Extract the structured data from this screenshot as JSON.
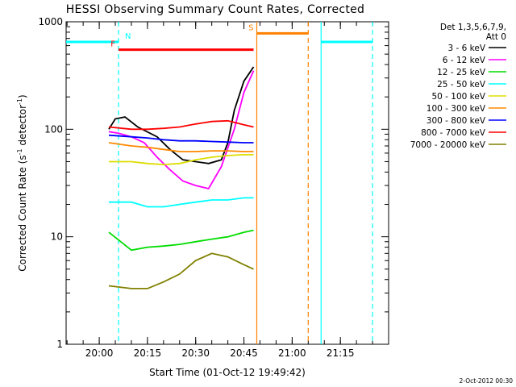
{
  "chart_data": {
    "type": "line",
    "title": "HESSI Observing Summary Count Rates, Corrected",
    "xlabel": "Start Time (01-Oct-12 19:49:42)",
    "ylabel": "Corrected Count Rate (s⁻¹ detector⁻¹)",
    "ylabel_parts": [
      "Corrected Count Rate (s",
      "-1",
      " detector",
      "-1",
      ")"
    ],
    "yscale": "log",
    "xlim": [
      "19:49:42",
      "21:30:00"
    ],
    "ylim": [
      1,
      1000
    ],
    "x_ticks": [
      "20:00",
      "20:15",
      "20:30",
      "20:45",
      "21:00",
      "21:15"
    ],
    "y_ticks": [
      "1",
      "10",
      "100",
      "1000"
    ],
    "grid": false,
    "legend": {
      "placement": "right",
      "header": [
        "Det 1,3,5,6,7,9,",
        "Att 0"
      ]
    },
    "series": [
      {
        "name": "3 - 6 keV",
        "color": "#000000",
        "x": [
          "20:03",
          "20:05",
          "20:08",
          "20:12",
          "20:18",
          "20:22",
          "20:26",
          "20:30",
          "20:34",
          "20:38",
          "20:40",
          "20:42",
          "20:45",
          "20:48"
        ],
        "y": [
          100,
          125,
          130,
          105,
          85,
          65,
          52,
          50,
          48,
          52,
          75,
          150,
          280,
          380
        ]
      },
      {
        "name": "6 - 12 keV",
        "color": "#ff00ff",
        "x": [
          "20:03",
          "20:06",
          "20:10",
          "20:14",
          "20:18",
          "20:22",
          "20:26",
          "20:30",
          "20:34",
          "20:38",
          "20:42",
          "20:45",
          "20:48"
        ],
        "y": [
          95,
          92,
          85,
          75,
          55,
          42,
          33,
          30,
          28,
          45,
          100,
          220,
          350
        ]
      },
      {
        "name": "12 - 25 keV",
        "color": "#00dd00",
        "x": [
          "20:03",
          "20:10",
          "20:15",
          "20:20",
          "20:25",
          "20:30",
          "20:35",
          "20:40",
          "20:45",
          "20:48"
        ],
        "y": [
          11,
          7.5,
          8,
          8.2,
          8.5,
          9,
          9.5,
          10,
          11,
          11.5
        ]
      },
      {
        "name": "25 - 50 keV",
        "color": "#00ffff",
        "x": [
          "20:03",
          "20:10",
          "20:15",
          "20:20",
          "20:25",
          "20:30",
          "20:35",
          "20:40",
          "20:45",
          "20:48"
        ],
        "y": [
          21,
          21,
          19,
          19,
          20,
          21,
          22,
          22,
          23,
          23
        ]
      },
      {
        "name": "50 - 100 keV",
        "color": "#dddd00",
        "x": [
          "20:03",
          "20:10",
          "20:15",
          "20:20",
          "20:25",
          "20:30",
          "20:35",
          "20:40",
          "20:45",
          "20:48"
        ],
        "y": [
          50,
          50,
          48,
          47,
          48,
          52,
          55,
          57,
          58,
          58
        ]
      },
      {
        "name": "100 - 300 keV",
        "color": "#ff8800",
        "x": [
          "20:03",
          "20:10",
          "20:15",
          "20:20",
          "20:25",
          "20:30",
          "20:35",
          "20:40",
          "20:45",
          "20:48"
        ],
        "y": [
          75,
          70,
          68,
          65,
          62,
          62,
          63,
          63,
          62,
          62
        ]
      },
      {
        "name": "300 - 800 keV",
        "color": "#0000ff",
        "x": [
          "20:03",
          "20:10",
          "20:15",
          "20:20",
          "20:25",
          "20:30",
          "20:35",
          "20:40",
          "20:45",
          "20:48"
        ],
        "y": [
          88,
          85,
          83,
          80,
          78,
          78,
          77,
          76,
          75,
          75
        ]
      },
      {
        "name": "800 - 7000 keV",
        "color": "#ff0000",
        "x": [
          "20:03",
          "20:10",
          "20:15",
          "20:20",
          "20:25",
          "20:30",
          "20:35",
          "20:40",
          "20:45",
          "20:48"
        ],
        "y": [
          105,
          100,
          100,
          102,
          105,
          112,
          118,
          120,
          110,
          105
        ]
      },
      {
        "name": "7000 - 20000 keV",
        "color": "#808000",
        "x": [
          "20:03",
          "20:10",
          "20:15",
          "20:20",
          "20:25",
          "20:30",
          "20:35",
          "20:40",
          "20:45",
          "20:48"
        ],
        "y": [
          3.5,
          3.3,
          3.3,
          3.8,
          4.5,
          6,
          7,
          6.5,
          5.5,
          5
        ]
      }
    ],
    "flags": [
      {
        "label": "F",
        "color": "#ff0000",
        "start": "20:06",
        "end": "20:48",
        "y": 550
      },
      {
        "label": "S",
        "color": "#ff8000",
        "start": "20:49",
        "end": "21:05",
        "y": 780
      },
      {
        "label": "N",
        "color": "#00ffff",
        "start": "19:49:42",
        "end": "20:06",
        "y": 650
      },
      {
        "label": "",
        "color": "#00ffff",
        "start": "21:09",
        "end": "21:25",
        "y": 650
      }
    ],
    "markers": [
      {
        "color": "#00ffff",
        "style": "dashed",
        "x": "20:06"
      },
      {
        "color": "#ff8000",
        "style": "solid",
        "x": "20:49"
      },
      {
        "color": "#ff8000",
        "style": "dashed",
        "x": "21:05"
      },
      {
        "color": "#00ffff",
        "style": "solid",
        "x": "21:09"
      },
      {
        "color": "#00ffff",
        "style": "dashed",
        "x": "21:25"
      }
    ]
  },
  "footer": {
    "timestamp": "2-Oct-2012 00:30"
  }
}
